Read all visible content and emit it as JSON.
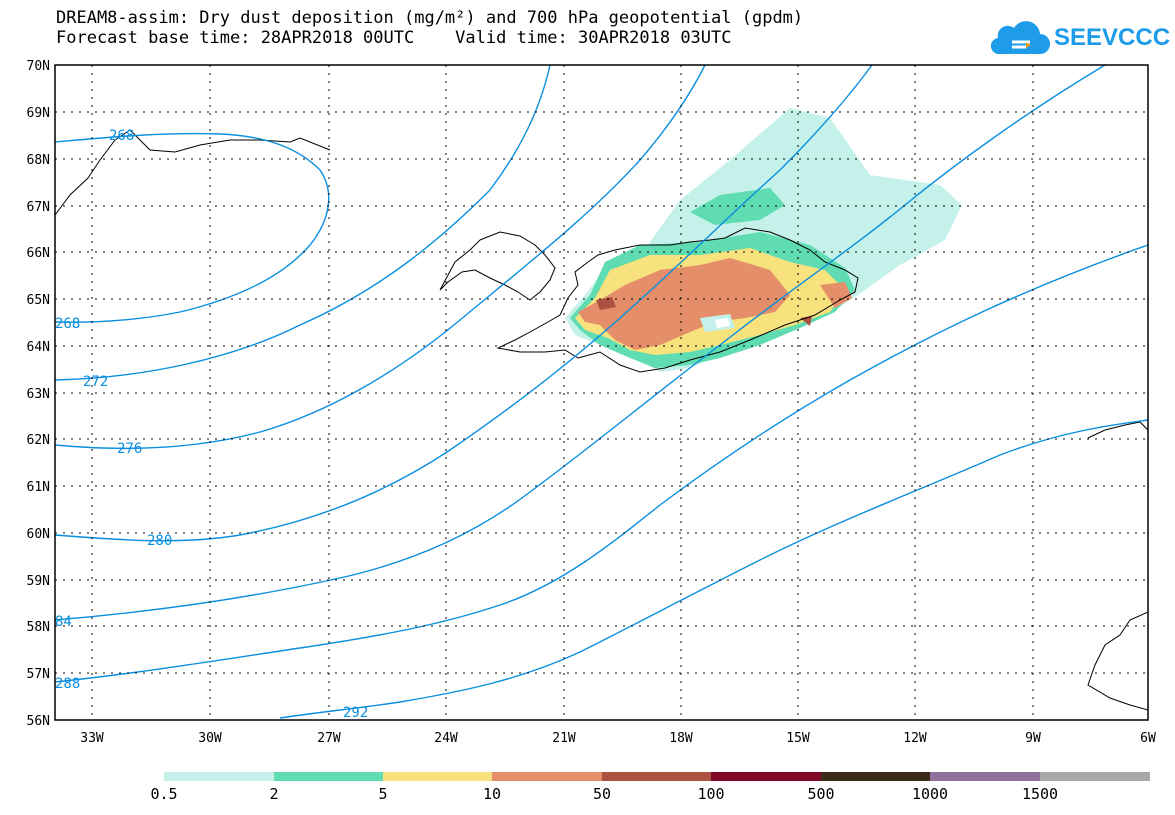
{
  "title": {
    "line1": "DREAM8-assim: Dry dust deposition (mg/m²) and 700 hPa geopotential (gpdm)",
    "line2": "Forecast base time: 28APR2018 00UTC    Valid time: 30APR2018 03UTC"
  },
  "logo": {
    "text": "SEEVCCC",
    "icon": "cloud-icon",
    "color": "#1e9be9"
  },
  "map": {
    "lat_labels": [
      "70N",
      "69N",
      "68N",
      "67N",
      "66N",
      "65N",
      "64N",
      "63N",
      "62N",
      "61N",
      "60N",
      "59N",
      "58N",
      "57N",
      "56N"
    ],
    "lon_labels": [
      "33W",
      "30W",
      "27W",
      "24W",
      "21W",
      "18W",
      "15W",
      "12W",
      "9W",
      "6W"
    ],
    "lat_range": [
      56,
      70
    ],
    "lon_range": [
      -34.2,
      -6
    ],
    "grid": "dotted"
  },
  "contours": {
    "color": "#0a8fe0",
    "labels": [
      "268",
      "268",
      "272",
      "276",
      "280",
      "84",
      "288",
      "292"
    ]
  },
  "legend": {
    "labels": [
      "0.5",
      "2",
      "5",
      "10",
      "50",
      "100",
      "500",
      "1000",
      "1500"
    ],
    "colors": [
      "#c4f2ea",
      "#5fdcb1",
      "#f7e27d",
      "#e58e6a",
      "#ad5140",
      "#810928",
      "#3a2a17",
      "#90709c",
      "#a8a8a8"
    ]
  }
}
